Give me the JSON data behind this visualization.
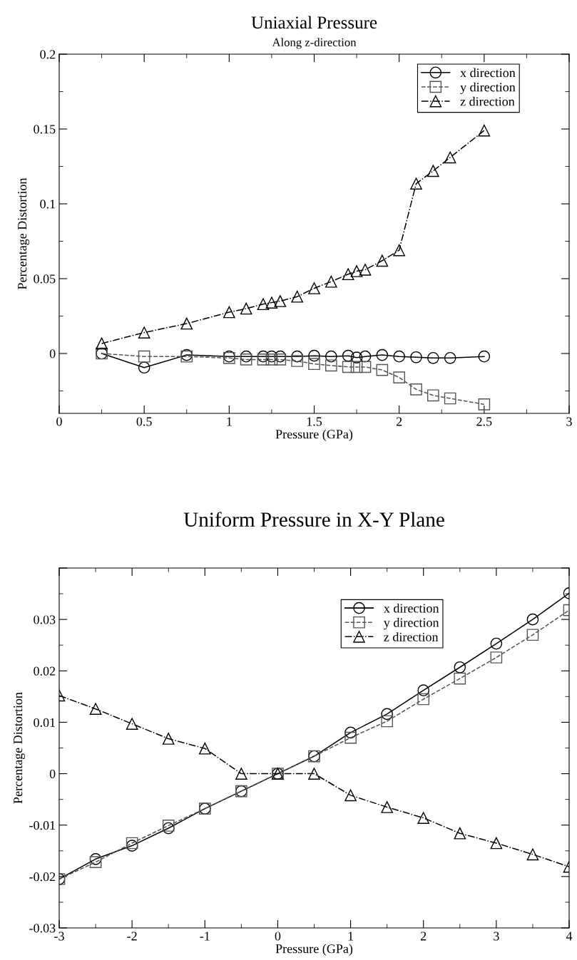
{
  "chart_data": [
    {
      "type": "line",
      "title": "Uniaxial Pressure",
      "subtitle": "Along z-direction",
      "xlabel": "Pressure (GPa)",
      "ylabel": "Percentage Distortion",
      "x": [
        0.25,
        0.5,
        0.75,
        1,
        1.1,
        1.2,
        1.25,
        1.3,
        1.4,
        1.5,
        1.6,
        1.7,
        1.75,
        1.8,
        1.9,
        2,
        2.1,
        2.2,
        2.3,
        2.5
      ],
      "series": [
        {
          "name": "x direction",
          "color": "#000000",
          "marker": "circle",
          "line_style": "solid",
          "values": [
            0,
            -0.0094,
            -0.001,
            -0.002,
            -0.002,
            -0.002,
            -0.002,
            -0.002,
            -0.002,
            -0.0015,
            -0.002,
            -0.0015,
            -0.0027,
            -0.002,
            -0.001,
            -0.002,
            -0.0025,
            -0.003,
            -0.003,
            -0.002
          ]
        },
        {
          "name": "y direction",
          "color": "#555555",
          "marker": "square",
          "line_style": "dashed",
          "values": [
            0,
            -0.002,
            -0.002,
            -0.003,
            -0.004,
            -0.004,
            -0.004,
            -0.004,
            -0.005,
            -0.007,
            -0.008,
            -0.009,
            -0.009,
            -0.009,
            -0.011,
            -0.016,
            -0.024,
            -0.028,
            -0.03,
            -0.034
          ]
        },
        {
          "name": "z direction",
          "color": "#000000",
          "marker": "triangle",
          "line_style": "dashdot",
          "values": [
            0.0067,
            0.014,
            0.02,
            0.0276,
            0.03,
            0.033,
            0.034,
            0.035,
            0.038,
            0.0436,
            0.048,
            0.053,
            0.055,
            0.056,
            0.062,
            0.069,
            0.1135,
            0.122,
            0.131,
            0.149
          ]
        }
      ],
      "xlim": [
        0,
        3
      ],
      "xticks": [
        0,
        0.5,
        1,
        1.5,
        2,
        2.5,
        3
      ],
      "ylim": [
        -0.04,
        0.2
      ],
      "yticks": [
        0,
        0.05,
        0.1,
        0.15,
        0.2
      ],
      "grid": false,
      "legend": "top right"
    },
    {
      "type": "line",
      "title": "Uniform Pressure in X-Y Plane",
      "xlabel": "Pressure (GPa)",
      "ylabel": "Percentage Distortion",
      "x": [
        -3,
        -2.5,
        -2,
        -1.5,
        -1,
        -0.5,
        0,
        0.5,
        1,
        1.5,
        2,
        2.5,
        3,
        3.5,
        4
      ],
      "series": [
        {
          "name": "x direction",
          "color": "#000000",
          "marker": "circle",
          "line_style": "solid",
          "values": [
            -0.0205,
            -0.0166,
            -0.014,
            -0.0106,
            -0.0068,
            -0.0034,
            0,
            0.0034,
            0.008,
            0.0116,
            0.0162,
            0.0207,
            0.0253,
            0.03,
            0.0351
          ]
        },
        {
          "name": "y direction",
          "color": "#555555",
          "marker": "square",
          "line_style": "dashed",
          "values": [
            -0.0205,
            -0.0172,
            -0.0135,
            -0.0101,
            -0.0068,
            -0.0034,
            0,
            0.0034,
            0.007,
            0.0102,
            0.0145,
            0.0185,
            0.0226,
            0.027,
            0.0318
          ]
        },
        {
          "name": "z direction",
          "color": "#000000",
          "marker": "triangle",
          "line_style": "dashdot",
          "values": [
            0.0152,
            0.0126,
            0.0097,
            0.0068,
            0.0049,
            0,
            0,
            0,
            -0.0042,
            -0.0065,
            -0.0086,
            -0.0116,
            -0.0135,
            -0.0157,
            -0.0181
          ]
        }
      ],
      "xlim": [
        -3,
        4
      ],
      "xticks": [
        -3,
        -2,
        -1,
        0,
        1,
        2,
        3,
        4
      ],
      "ylim": [
        -0.03,
        0.04
      ],
      "yticks": [
        -0.03,
        -0.02,
        -0.01,
        0,
        0.01,
        0.02,
        0.03,
        {
          "value": 0.04,
          "label": null
        }
      ],
      "grid": false,
      "legend": "top right"
    }
  ]
}
